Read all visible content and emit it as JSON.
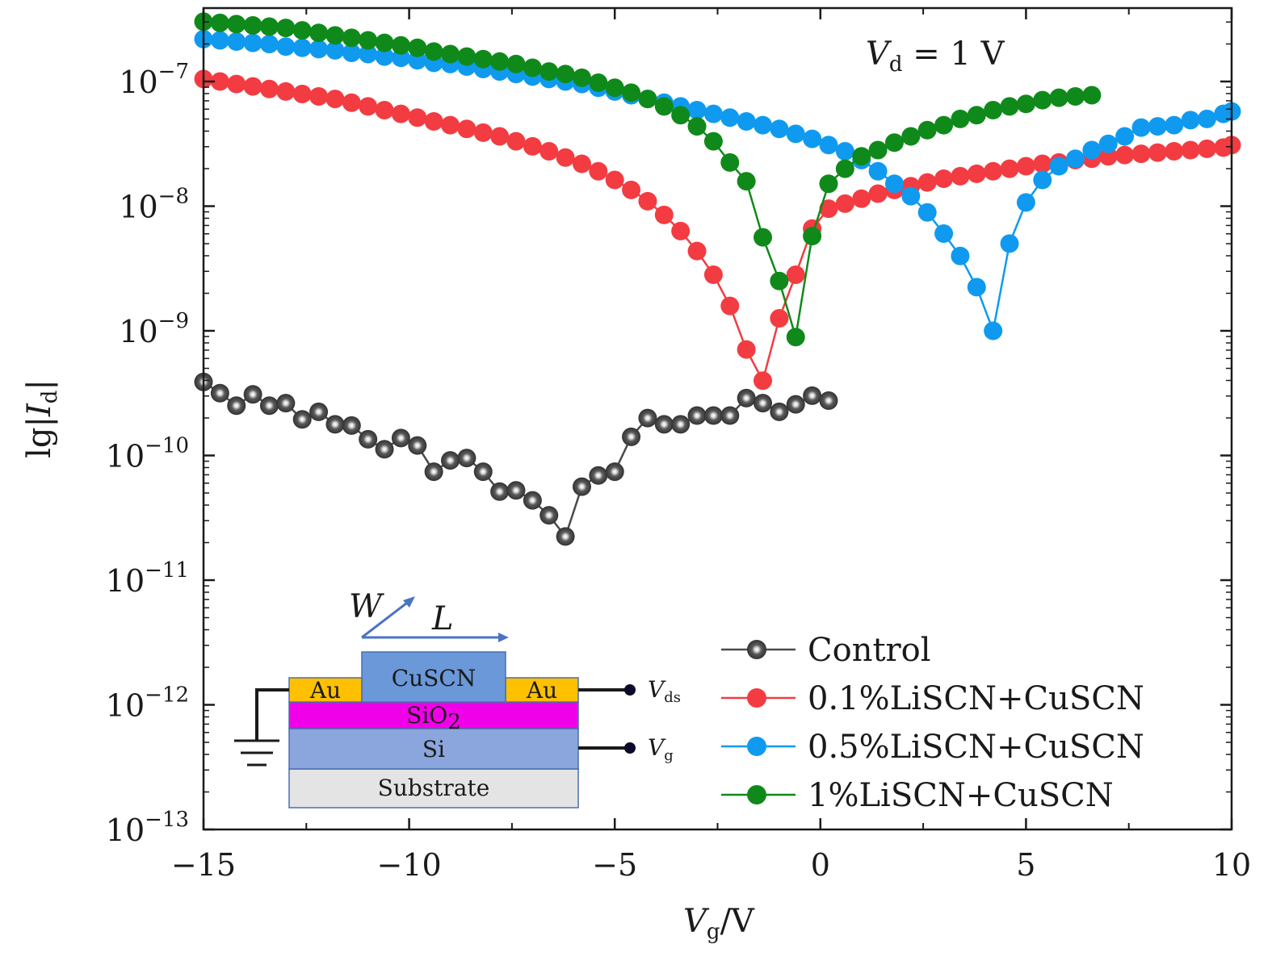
{
  "chart_data": {
    "type": "line",
    "xlabel": {
      "main": "V",
      "sub": "g",
      "suffix": "/V"
    },
    "ylabel": {
      "prefix": "lg|",
      "main": "I",
      "sub": "d",
      "suffix": "|"
    },
    "annotation": {
      "main": "V",
      "sub": "d",
      "text": " = 1  V"
    },
    "xlim": [
      -15,
      10
    ],
    "ylim_log10": [
      -13,
      -6.3
    ],
    "x_ticks": [
      {
        "value": -15,
        "label": "−15"
      },
      {
        "value": -10,
        "label": "−10"
      },
      {
        "value": -5,
        "label": "−5"
      },
      {
        "value": 0,
        "label": "0"
      },
      {
        "value": 5,
        "label": "5"
      },
      {
        "value": 10,
        "label": "10"
      }
    ],
    "y_ticks": [
      {
        "value": -7,
        "base": "10",
        "exp": "−7"
      },
      {
        "value": -8,
        "base": "10",
        "exp": "−8"
      },
      {
        "value": -9,
        "base": "10",
        "exp": "−9"
      },
      {
        "value": -10,
        "base": "10",
        "exp": "−10"
      },
      {
        "value": -11,
        "base": "10",
        "exp": "−11"
      },
      {
        "value": -12,
        "base": "10",
        "exp": "−12"
      },
      {
        "value": -13,
        "base": "10",
        "exp": "−13"
      }
    ],
    "series": [
      {
        "name": "Control",
        "color": "#4a4a4a",
        "marker_style": "sphere",
        "x": [
          -15,
          -14.6,
          -14.2,
          -13.8,
          -13.4,
          -13.0,
          -12.6,
          -12.2,
          -11.8,
          -11.4,
          -11.0,
          -10.6,
          -10.2,
          -9.8,
          -9.4,
          -9.0,
          -8.6,
          -8.2,
          -7.8,
          -7.4,
          -7.0,
          -6.6,
          -6.2,
          -5.8,
          -5.4,
          -5.0,
          -4.6,
          -4.2,
          -3.8,
          -3.4,
          -3.0,
          -2.6,
          -2.2,
          -1.8,
          -1.4,
          -1.0,
          -0.6,
          -0.2,
          0.2
        ],
        "y": [
          -9.41,
          -9.5,
          -9.6,
          -9.51,
          -9.6,
          -9.58,
          -9.71,
          -9.65,
          -9.75,
          -9.76,
          -9.87,
          -9.95,
          -9.86,
          -9.92,
          -10.13,
          -10.04,
          -10.02,
          -10.13,
          -10.29,
          -10.28,
          -10.36,
          -10.48,
          -10.65,
          -10.25,
          -10.16,
          -10.13,
          -9.85,
          -9.7,
          -9.75,
          -9.75,
          -9.68,
          -9.68,
          -9.68,
          -9.54,
          -9.58,
          -9.65,
          -9.59,
          -9.52,
          -9.56
        ]
      },
      {
        "name": "0.1%LiSCN+CuSCN",
        "color": "#f23c42",
        "marker_style": "disc",
        "x": [
          -15,
          -14.6,
          -14.2,
          -13.8,
          -13.4,
          -13.0,
          -12.6,
          -12.2,
          -11.8,
          -11.4,
          -11.0,
          -10.6,
          -10.2,
          -9.8,
          -9.4,
          -9.0,
          -8.6,
          -8.2,
          -7.8,
          -7.4,
          -7.0,
          -6.6,
          -6.2,
          -5.8,
          -5.4,
          -5.0,
          -4.6,
          -4.2,
          -3.8,
          -3.4,
          -3.0,
          -2.6,
          -2.2,
          -1.8,
          -1.4,
          -1.0,
          -0.6,
          -0.2,
          0.2,
          0.6,
          1.0,
          1.4,
          1.8,
          2.2,
          2.6,
          3.0,
          3.4,
          3.8,
          4.2,
          4.6,
          5.0,
          5.4,
          5.8,
          6.2,
          6.6,
          7.0,
          7.4,
          7.8,
          8.2,
          8.6,
          9.0,
          9.4,
          9.8,
          10.0
        ],
        "y": [
          -6.98,
          -7.0,
          -7.02,
          -7.04,
          -7.06,
          -7.08,
          -7.1,
          -7.12,
          -7.14,
          -7.17,
          -7.2,
          -7.23,
          -7.26,
          -7.29,
          -7.32,
          -7.35,
          -7.38,
          -7.41,
          -7.44,
          -7.48,
          -7.52,
          -7.56,
          -7.61,
          -7.66,
          -7.72,
          -7.79,
          -7.87,
          -7.96,
          -8.07,
          -8.2,
          -8.36,
          -8.55,
          -8.8,
          -9.15,
          -9.4,
          -8.9,
          -8.55,
          -8.18,
          -8.02,
          -7.98,
          -7.94,
          -7.9,
          -7.87,
          -7.84,
          -7.81,
          -7.78,
          -7.76,
          -7.74,
          -7.72,
          -7.7,
          -7.68,
          -7.66,
          -7.65,
          -7.63,
          -7.62,
          -7.6,
          -7.59,
          -7.58,
          -7.57,
          -7.56,
          -7.55,
          -7.54,
          -7.53,
          -7.51
        ]
      },
      {
        "name": "0.5%LiSCN+CuSCN",
        "color": "#0f9af0",
        "marker_style": "disc",
        "x": [
          -15,
          -14.6,
          -14.2,
          -13.8,
          -13.4,
          -13.0,
          -12.6,
          -12.2,
          -11.8,
          -11.4,
          -11.0,
          -10.6,
          -10.2,
          -9.8,
          -9.4,
          -9.0,
          -8.6,
          -8.2,
          -7.8,
          -7.4,
          -7.0,
          -6.6,
          -6.2,
          -5.8,
          -5.4,
          -5.0,
          -4.6,
          -4.2,
          -3.8,
          -3.4,
          -3.0,
          -2.6,
          -2.2,
          -1.8,
          -1.4,
          -1.0,
          -0.6,
          -0.2,
          0.2,
          0.6,
          1.0,
          1.4,
          1.8,
          2.2,
          2.6,
          3.0,
          3.4,
          3.8,
          4.2,
          4.6,
          5.0,
          5.4,
          5.8,
          6.2,
          6.6,
          7.0,
          7.4,
          7.8,
          8.2,
          8.6,
          9.0,
          9.4,
          9.8,
          10.0
        ],
        "y": [
          -6.66,
          -6.67,
          -6.68,
          -6.69,
          -6.7,
          -6.72,
          -6.73,
          -6.74,
          -6.75,
          -6.77,
          -6.78,
          -6.8,
          -6.81,
          -6.83,
          -6.85,
          -6.86,
          -6.88,
          -6.9,
          -6.92,
          -6.94,
          -6.96,
          -6.98,
          -7.0,
          -7.02,
          -7.05,
          -7.08,
          -7.11,
          -7.14,
          -7.17,
          -7.2,
          -7.23,
          -7.26,
          -7.29,
          -7.32,
          -7.35,
          -7.38,
          -7.42,
          -7.46,
          -7.51,
          -7.56,
          -7.63,
          -7.72,
          -7.82,
          -7.92,
          -8.05,
          -8.22,
          -8.4,
          -8.65,
          -9.0,
          -8.3,
          -7.97,
          -7.79,
          -7.68,
          -7.62,
          -7.55,
          -7.5,
          -7.44,
          -7.37,
          -7.36,
          -7.35,
          -7.31,
          -7.3,
          -7.26,
          -7.24
        ]
      },
      {
        "name": "1%LiSCN+CuSCN",
        "color": "#0f8a1a",
        "marker_style": "disc",
        "x": [
          -15,
          -14.6,
          -14.2,
          -13.8,
          -13.4,
          -13.0,
          -12.6,
          -12.2,
          -11.8,
          -11.4,
          -11.0,
          -10.6,
          -10.2,
          -9.8,
          -9.4,
          -9.0,
          -8.6,
          -8.2,
          -7.8,
          -7.4,
          -7.0,
          -6.6,
          -6.2,
          -5.8,
          -5.4,
          -5.0,
          -4.6,
          -4.2,
          -3.8,
          -3.4,
          -3.0,
          -2.6,
          -2.2,
          -1.8,
          -1.4,
          -1.0,
          -0.6,
          -0.2,
          0.2,
          0.6,
          1.0,
          1.4,
          1.8,
          2.2,
          2.6,
          3.0,
          3.4,
          3.8,
          4.2,
          4.6,
          5.0,
          5.4,
          5.8,
          6.2,
          6.6
        ],
        "y": [
          -6.52,
          -6.53,
          -6.54,
          -6.55,
          -6.56,
          -6.57,
          -6.59,
          -6.61,
          -6.63,
          -6.65,
          -6.67,
          -6.69,
          -6.71,
          -6.73,
          -6.76,
          -6.78,
          -6.8,
          -6.82,
          -6.84,
          -6.86,
          -6.89,
          -6.92,
          -6.94,
          -6.97,
          -7.01,
          -7.05,
          -7.09,
          -7.14,
          -7.2,
          -7.27,
          -7.36,
          -7.48,
          -7.65,
          -7.8,
          -8.25,
          -8.6,
          -9.05,
          -8.24,
          -7.82,
          -7.7,
          -7.6,
          -7.55,
          -7.49,
          -7.44,
          -7.39,
          -7.35,
          -7.3,
          -7.27,
          -7.23,
          -7.2,
          -7.18,
          -7.15,
          -7.13,
          -7.12,
          -7.11
        ]
      }
    ],
    "inset": {
      "layers": {
        "substrate": "Substrate",
        "si": "Si",
        "sio2_base": "SiO",
        "sio2_sub": "2",
        "cuscn": "CuSCN",
        "au_left": "Au",
        "au_right": "Au"
      },
      "w_label": "W",
      "l_label": "L",
      "vds": {
        "main": "V",
        "sub": "ds"
      },
      "vg": {
        "main": "V",
        "sub": "g"
      }
    }
  }
}
